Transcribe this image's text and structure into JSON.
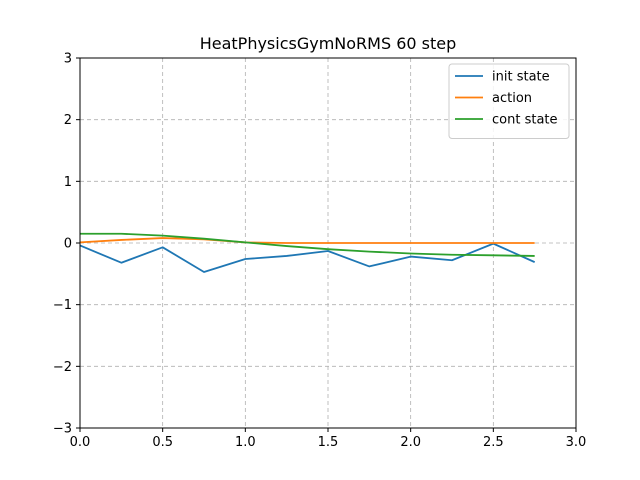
{
  "chart_data": {
    "type": "line",
    "title": "HeatPhysicsGymNoRMS 60 step",
    "xlabel": "",
    "ylabel": "",
    "xlim": [
      0.0,
      3.0
    ],
    "ylim": [
      -3,
      3
    ],
    "xticks": [
      0.0,
      0.5,
      1.0,
      1.5,
      2.0,
      2.5,
      3.0
    ],
    "xtick_labels": [
      "0.0",
      "0.5",
      "1.0",
      "1.5",
      "2.0",
      "2.5",
      "3.0"
    ],
    "yticks": [
      -3,
      -2,
      -1,
      0,
      1,
      2,
      3
    ],
    "ytick_labels": [
      "−3",
      "−2",
      "−1",
      "0",
      "1",
      "2",
      "3"
    ],
    "grid": true,
    "legend_position": "top-right",
    "series": [
      {
        "name": "init state",
        "color": "#1f77b4",
        "x": [
          0.0,
          0.25,
          0.5,
          0.75,
          1.0,
          1.25,
          1.5,
          1.75,
          2.0,
          2.25,
          2.5,
          2.75
        ],
        "values": [
          -0.04,
          -0.32,
          -0.07,
          -0.47,
          -0.26,
          -0.21,
          -0.13,
          -0.38,
          -0.22,
          -0.28,
          -0.01,
          -0.31
        ]
      },
      {
        "name": "action",
        "color": "#ff7f0e",
        "x": [
          0.0,
          0.25,
          0.5,
          0.75,
          1.0,
          1.25,
          1.5,
          1.75,
          2.0,
          2.25,
          2.5,
          2.75
        ],
        "values": [
          0.01,
          0.05,
          0.08,
          0.06,
          0.01,
          0.0,
          0.0,
          0.0,
          0.0,
          0.0,
          0.0,
          0.0
        ]
      },
      {
        "name": "cont state",
        "color": "#2ca02c",
        "x": [
          0.0,
          0.25,
          0.5,
          0.75,
          1.0,
          1.25,
          1.5,
          1.75,
          2.0,
          2.25,
          2.5,
          2.75
        ],
        "values": [
          0.15,
          0.15,
          0.12,
          0.07,
          0.01,
          -0.05,
          -0.1,
          -0.14,
          -0.17,
          -0.19,
          -0.2,
          -0.21
        ]
      }
    ]
  }
}
